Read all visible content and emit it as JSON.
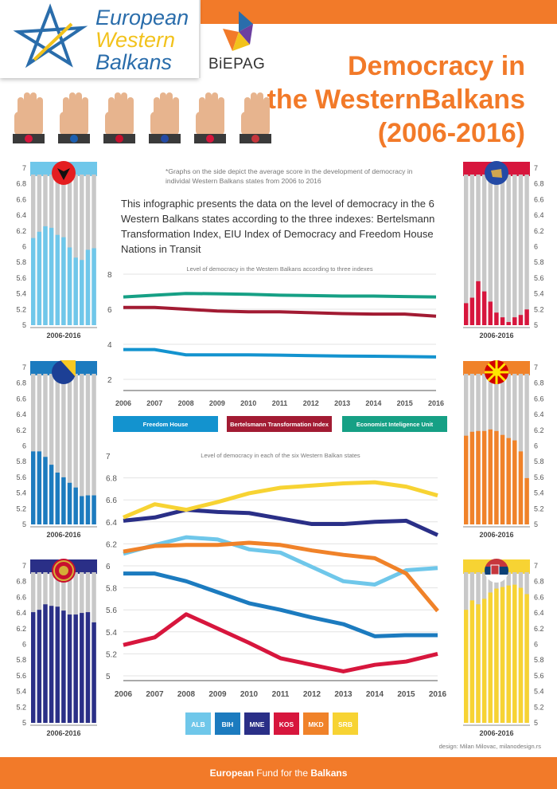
{
  "header": {
    "logo": [
      "European",
      "Western",
      "Balkans"
    ],
    "partner": "BiEPAG",
    "title_lines": [
      "Democracy in",
      "the WesternBalkans",
      "(2006-2016)"
    ]
  },
  "footnote": "*Graphs on the side depict the average score in the development of democracy in individal Western Balkans states from 2006 to 2016",
  "intro": "This infographic presents the data on the level of  democracy in the 6 Western Balkans states  according to the three indexes: Bertelsmann Transformation Index, EIU Index of Democracy and Freedom House Nations in Transit",
  "hand_flags": [
    "ALB",
    "BIH",
    "MNE",
    "KOS",
    "MKD",
    "SRB"
  ],
  "colors": {
    "orange": "#f27a29",
    "grey_bar": "#c8c8c8",
    "ALB": "#6fc7ea",
    "BIH": "#1c7bbf",
    "MNE": "#2a2f87",
    "KOS": "#d7163d",
    "MKD": "#f08229",
    "SRB": "#f7d333",
    "FH": "#1393cf",
    "BTI": "#a21b33",
    "EIU": "#16a085"
  },
  "chart_data": [
    {
      "type": "line",
      "title": "Level of democracy in the Western Balkans according to three indexes",
      "x": [
        "2006",
        "2007",
        "2008",
        "2009",
        "2010",
        "2011",
        "2012",
        "2013",
        "2014",
        "2015",
        "2016"
      ],
      "ylim": [
        2,
        8
      ],
      "yticks": [
        "8",
        "6",
        "4",
        "2"
      ],
      "series": [
        {
          "name": "Freedom House",
          "values": [
            3.7,
            3.7,
            3.4,
            3.4,
            3.4,
            3.38,
            3.35,
            3.33,
            3.32,
            3.3,
            3.28
          ]
        },
        {
          "name": "Bertelsmann Transformation Index",
          "values": [
            6.1,
            6.1,
            6.0,
            5.9,
            5.85,
            5.85,
            5.8,
            5.75,
            5.72,
            5.72,
            5.6
          ]
        },
        {
          "name": "Economist Inteligence Unit",
          "values": [
            6.7,
            6.8,
            6.9,
            6.88,
            6.85,
            6.8,
            6.78,
            6.75,
            6.75,
            6.72,
            6.7
          ]
        }
      ]
    },
    {
      "type": "line",
      "title": "Level of democracy in each of the six Western Balkan states",
      "x": [
        "2006",
        "2007",
        "2008",
        "2009",
        "2010",
        "2011",
        "2012",
        "2013",
        "2014",
        "2015",
        "2016"
      ],
      "ylim": [
        5,
        7
      ],
      "yticks": [
        "7",
        "6.8",
        "6.6",
        "6.4",
        "6.2",
        "6",
        "5.8",
        "5.6",
        "5.4",
        "5.2",
        "5"
      ],
      "series": [
        {
          "name": "ALB",
          "values": [
            6.11,
            6.19,
            6.26,
            6.24,
            6.15,
            6.12,
            5.99,
            5.86,
            5.83,
            5.96,
            5.98
          ]
        },
        {
          "name": "BIH",
          "values": [
            5.93,
            5.93,
            5.86,
            5.76,
            5.66,
            5.6,
            5.53,
            5.47,
            5.36,
            5.37,
            5.37
          ]
        },
        {
          "name": "MNE",
          "values": [
            6.41,
            6.44,
            6.51,
            6.49,
            6.48,
            6.43,
            6.38,
            6.38,
            6.4,
            6.41,
            6.28
          ]
        },
        {
          "name": "KOS",
          "values": [
            5.28,
            5.35,
            5.56,
            5.43,
            5.3,
            5.16,
            5.1,
            5.04,
            5.1,
            5.13,
            5.2
          ]
        },
        {
          "name": "MKD",
          "values": [
            6.13,
            6.18,
            6.19,
            6.19,
            6.21,
            6.19,
            6.14,
            6.1,
            6.07,
            5.93,
            5.59
          ]
        },
        {
          "name": "SRB",
          "values": [
            6.44,
            6.56,
            6.51,
            6.58,
            6.66,
            6.71,
            6.73,
            6.75,
            6.76,
            6.72,
            6.64
          ]
        }
      ]
    },
    {
      "type": "bar",
      "country": "ALB",
      "xlabel": "2006-2016",
      "ylim": [
        5,
        7
      ],
      "yticks": [
        "7",
        "6.8",
        "6.6",
        "6.4",
        "6.2",
        "6",
        "5.8",
        "5.6",
        "5.4",
        "5.2",
        "5"
      ],
      "categories": [
        "2006",
        "2007",
        "2008",
        "2009",
        "2010",
        "2011",
        "2012",
        "2013",
        "2014",
        "2015",
        "2016"
      ],
      "values": [
        6.11,
        6.19,
        6.26,
        6.24,
        6.15,
        6.12,
        5.99,
        5.86,
        5.83,
        5.96,
        5.98
      ]
    },
    {
      "type": "bar",
      "country": "BIH",
      "xlabel": "2006-2016",
      "ylim": [
        5,
        7
      ],
      "yticks": [
        "7",
        "6.8",
        "6.6",
        "6.4",
        "6.2",
        "6",
        "5.8",
        "5.6",
        "5.4",
        "5.2",
        "5"
      ],
      "categories": [
        "2006",
        "2007",
        "2008",
        "2009",
        "2010",
        "2011",
        "2012",
        "2013",
        "2014",
        "2015",
        "2016"
      ],
      "values": [
        5.93,
        5.93,
        5.86,
        5.76,
        5.66,
        5.6,
        5.53,
        5.47,
        5.36,
        5.37,
        5.37
      ]
    },
    {
      "type": "bar",
      "country": "MNE",
      "xlabel": "2006-2016",
      "ylim": [
        5,
        7
      ],
      "yticks": [
        "7",
        "6.8",
        "6.6",
        "6.4",
        "6.2",
        "6",
        "5.8",
        "5.6",
        "5.4",
        "5.2",
        "5"
      ],
      "categories": [
        "2006",
        "2007",
        "2008",
        "2009",
        "2010",
        "2011",
        "2012",
        "2013",
        "2014",
        "2015",
        "2016"
      ],
      "values": [
        6.41,
        6.44,
        6.51,
        6.49,
        6.48,
        6.43,
        6.38,
        6.38,
        6.4,
        6.41,
        6.28
      ]
    },
    {
      "type": "bar",
      "country": "KOS",
      "xlabel": "2006-2016",
      "ylim": [
        5,
        7
      ],
      "yticks": [
        "7",
        "6.8",
        "6.6",
        "6.4",
        "6.2",
        "6",
        "5.8",
        "5.6",
        "5.4",
        "5.2",
        "5"
      ],
      "categories": [
        "2006",
        "2007",
        "2008",
        "2009",
        "2010",
        "2011",
        "2012",
        "2013",
        "2014",
        "2015",
        "2016"
      ],
      "values": [
        5.28,
        5.35,
        5.56,
        5.43,
        5.3,
        5.16,
        5.1,
        5.04,
        5.1,
        5.13,
        5.2
      ]
    },
    {
      "type": "bar",
      "country": "MKD",
      "xlabel": "2006-2016",
      "ylim": [
        5,
        7
      ],
      "yticks": [
        "7",
        "6.8",
        "6.6",
        "6.4",
        "6.2",
        "6",
        "5.8",
        "5.6",
        "5.4",
        "5.2",
        "5"
      ],
      "categories": [
        "2006",
        "2007",
        "2008",
        "2009",
        "2010",
        "2011",
        "2012",
        "2013",
        "2014",
        "2015",
        "2016"
      ],
      "values": [
        6.13,
        6.18,
        6.19,
        6.19,
        6.21,
        6.19,
        6.14,
        6.1,
        6.07,
        5.93,
        5.59
      ]
    },
    {
      "type": "bar",
      "country": "SRB",
      "xlabel": "2006-2016",
      "ylim": [
        5,
        7
      ],
      "yticks": [
        "7",
        "6.8",
        "6.6",
        "6.4",
        "6.2",
        "6",
        "5.8",
        "5.6",
        "5.4",
        "5.2",
        "5"
      ],
      "categories": [
        "2006",
        "2007",
        "2008",
        "2009",
        "2010",
        "2011",
        "2012",
        "2013",
        "2014",
        "2015",
        "2016"
      ],
      "values": [
        6.44,
        6.56,
        6.51,
        6.58,
        6.66,
        6.71,
        6.73,
        6.75,
        6.76,
        6.72,
        6.64
      ]
    }
  ],
  "footer": {
    "pre": "European",
    "mid": " Fund for the ",
    "post": "Balkans"
  },
  "credit": "design: Milan Milovac, milanodesign.rs"
}
